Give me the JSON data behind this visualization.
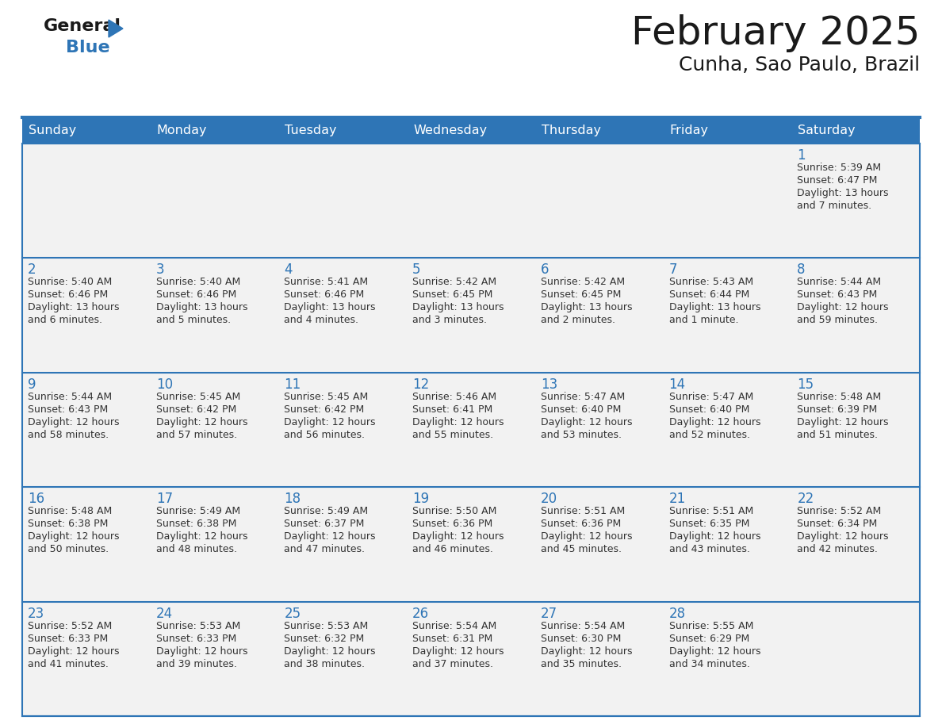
{
  "title": "February 2025",
  "subtitle": "Cunha, Sao Paulo, Brazil",
  "header_bg": "#2E75B6",
  "header_text_color": "#FFFFFF",
  "cell_bg_light": "#F2F2F2",
  "cell_bg_white": "#FFFFFF",
  "border_color": "#2E75B6",
  "text_color": "#333333",
  "day_num_color": "#2E75B6",
  "day_names": [
    "Sunday",
    "Monday",
    "Tuesday",
    "Wednesday",
    "Thursday",
    "Friday",
    "Saturday"
  ],
  "days": [
    {
      "day": 1,
      "col": 6,
      "row": 0,
      "sunrise": "5:39 AM",
      "sunset": "6:47 PM",
      "daylight_hours": 13,
      "daylight_minutes": 7
    },
    {
      "day": 2,
      "col": 0,
      "row": 1,
      "sunrise": "5:40 AM",
      "sunset": "6:46 PM",
      "daylight_hours": 13,
      "daylight_minutes": 6
    },
    {
      "day": 3,
      "col": 1,
      "row": 1,
      "sunrise": "5:40 AM",
      "sunset": "6:46 PM",
      "daylight_hours": 13,
      "daylight_minutes": 5
    },
    {
      "day": 4,
      "col": 2,
      "row": 1,
      "sunrise": "5:41 AM",
      "sunset": "6:46 PM",
      "daylight_hours": 13,
      "daylight_minutes": 4
    },
    {
      "day": 5,
      "col": 3,
      "row": 1,
      "sunrise": "5:42 AM",
      "sunset": "6:45 PM",
      "daylight_hours": 13,
      "daylight_minutes": 3
    },
    {
      "day": 6,
      "col": 4,
      "row": 1,
      "sunrise": "5:42 AM",
      "sunset": "6:45 PM",
      "daylight_hours": 13,
      "daylight_minutes": 2
    },
    {
      "day": 7,
      "col": 5,
      "row": 1,
      "sunrise": "5:43 AM",
      "sunset": "6:44 PM",
      "daylight_hours": 13,
      "daylight_minutes": 1
    },
    {
      "day": 8,
      "col": 6,
      "row": 1,
      "sunrise": "5:44 AM",
      "sunset": "6:43 PM",
      "daylight_hours": 12,
      "daylight_minutes": 59
    },
    {
      "day": 9,
      "col": 0,
      "row": 2,
      "sunrise": "5:44 AM",
      "sunset": "6:43 PM",
      "daylight_hours": 12,
      "daylight_minutes": 58
    },
    {
      "day": 10,
      "col": 1,
      "row": 2,
      "sunrise": "5:45 AM",
      "sunset": "6:42 PM",
      "daylight_hours": 12,
      "daylight_minutes": 57
    },
    {
      "day": 11,
      "col": 2,
      "row": 2,
      "sunrise": "5:45 AM",
      "sunset": "6:42 PM",
      "daylight_hours": 12,
      "daylight_minutes": 56
    },
    {
      "day": 12,
      "col": 3,
      "row": 2,
      "sunrise": "5:46 AM",
      "sunset": "6:41 PM",
      "daylight_hours": 12,
      "daylight_minutes": 55
    },
    {
      "day": 13,
      "col": 4,
      "row": 2,
      "sunrise": "5:47 AM",
      "sunset": "6:40 PM",
      "daylight_hours": 12,
      "daylight_minutes": 53
    },
    {
      "day": 14,
      "col": 5,
      "row": 2,
      "sunrise": "5:47 AM",
      "sunset": "6:40 PM",
      "daylight_hours": 12,
      "daylight_minutes": 52
    },
    {
      "day": 15,
      "col": 6,
      "row": 2,
      "sunrise": "5:48 AM",
      "sunset": "6:39 PM",
      "daylight_hours": 12,
      "daylight_minutes": 51
    },
    {
      "day": 16,
      "col": 0,
      "row": 3,
      "sunrise": "5:48 AM",
      "sunset": "6:38 PM",
      "daylight_hours": 12,
      "daylight_minutes": 50
    },
    {
      "day": 17,
      "col": 1,
      "row": 3,
      "sunrise": "5:49 AM",
      "sunset": "6:38 PM",
      "daylight_hours": 12,
      "daylight_minutes": 48
    },
    {
      "day": 18,
      "col": 2,
      "row": 3,
      "sunrise": "5:49 AM",
      "sunset": "6:37 PM",
      "daylight_hours": 12,
      "daylight_minutes": 47
    },
    {
      "day": 19,
      "col": 3,
      "row": 3,
      "sunrise": "5:50 AM",
      "sunset": "6:36 PM",
      "daylight_hours": 12,
      "daylight_minutes": 46
    },
    {
      "day": 20,
      "col": 4,
      "row": 3,
      "sunrise": "5:51 AM",
      "sunset": "6:36 PM",
      "daylight_hours": 12,
      "daylight_minutes": 45
    },
    {
      "day": 21,
      "col": 5,
      "row": 3,
      "sunrise": "5:51 AM",
      "sunset": "6:35 PM",
      "daylight_hours": 12,
      "daylight_minutes": 43
    },
    {
      "day": 22,
      "col": 6,
      "row": 3,
      "sunrise": "5:52 AM",
      "sunset": "6:34 PM",
      "daylight_hours": 12,
      "daylight_minutes": 42
    },
    {
      "day": 23,
      "col": 0,
      "row": 4,
      "sunrise": "5:52 AM",
      "sunset": "6:33 PM",
      "daylight_hours": 12,
      "daylight_minutes": 41
    },
    {
      "day": 24,
      "col": 1,
      "row": 4,
      "sunrise": "5:53 AM",
      "sunset": "6:33 PM",
      "daylight_hours": 12,
      "daylight_minutes": 39
    },
    {
      "day": 25,
      "col": 2,
      "row": 4,
      "sunrise": "5:53 AM",
      "sunset": "6:32 PM",
      "daylight_hours": 12,
      "daylight_minutes": 38
    },
    {
      "day": 26,
      "col": 3,
      "row": 4,
      "sunrise": "5:54 AM",
      "sunset": "6:31 PM",
      "daylight_hours": 12,
      "daylight_minutes": 37
    },
    {
      "day": 27,
      "col": 4,
      "row": 4,
      "sunrise": "5:54 AM",
      "sunset": "6:30 PM",
      "daylight_hours": 12,
      "daylight_minutes": 35
    },
    {
      "day": 28,
      "col": 5,
      "row": 4,
      "sunrise": "5:55 AM",
      "sunset": "6:29 PM",
      "daylight_hours": 12,
      "daylight_minutes": 34
    }
  ],
  "num_rows": 5,
  "num_cols": 7
}
